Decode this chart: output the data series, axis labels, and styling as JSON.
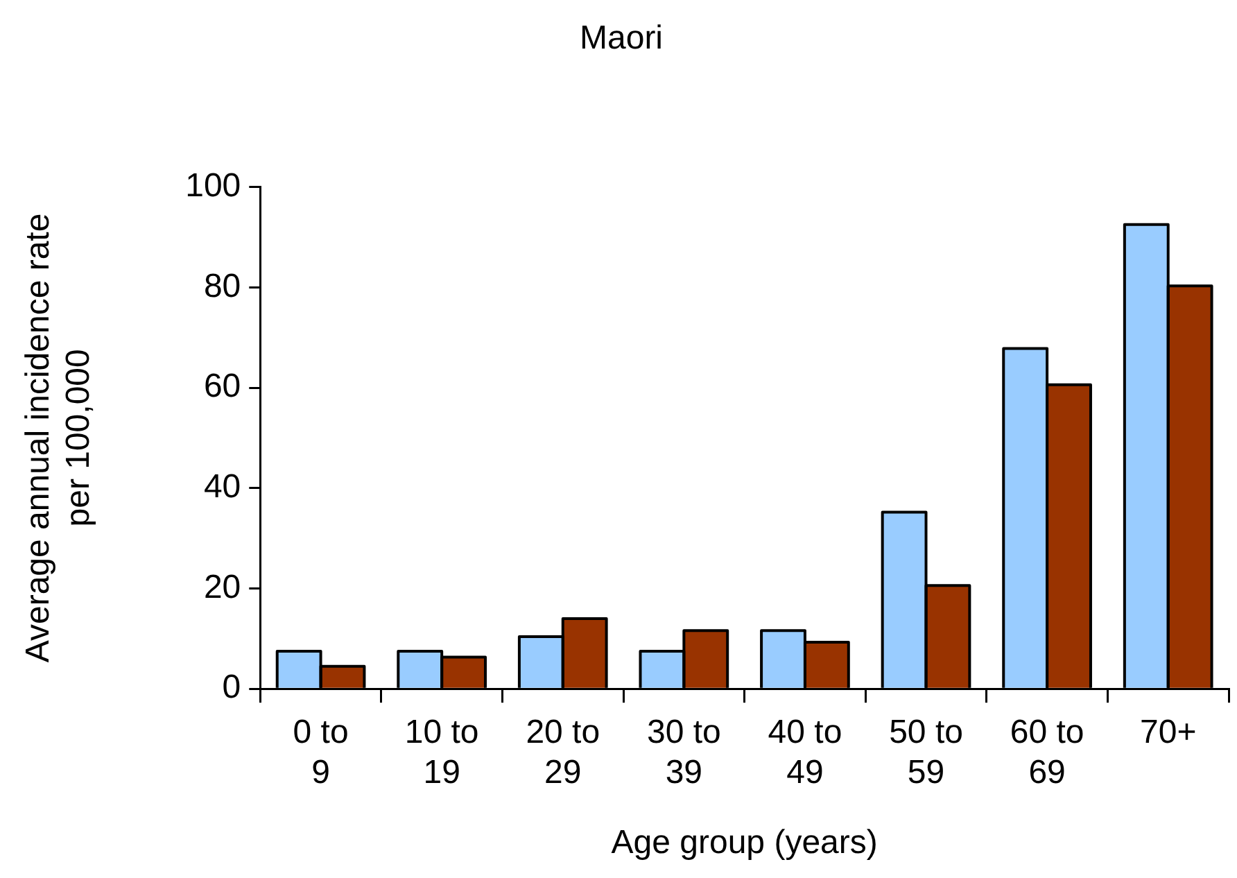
{
  "chart_data": {
    "type": "bar",
    "title": "Maori",
    "xlabel": "Age group (years)",
    "ylabel": "Average annual incidence rate per 100,000",
    "categories": [
      "0 to 9",
      "10 to 19",
      "20 to 29",
      "30 to 39",
      "40 to 49",
      "50 to 59",
      "60 to 69",
      "70+"
    ],
    "series": [
      {
        "color": "#99ccff",
        "values": [
          7.5,
          7.5,
          10.4,
          7.5,
          11.6,
          35.2,
          67.8,
          92.5
        ]
      },
      {
        "color": "#993300",
        "values": [
          4.5,
          6.3,
          14,
          11.6,
          9.3,
          20.6,
          60.6,
          80.3
        ]
      }
    ],
    "ylim": [
      0,
      100
    ],
    "yticks": [
      0,
      20,
      40,
      60,
      80,
      100
    ],
    "grid": false,
    "legend": false
  }
}
